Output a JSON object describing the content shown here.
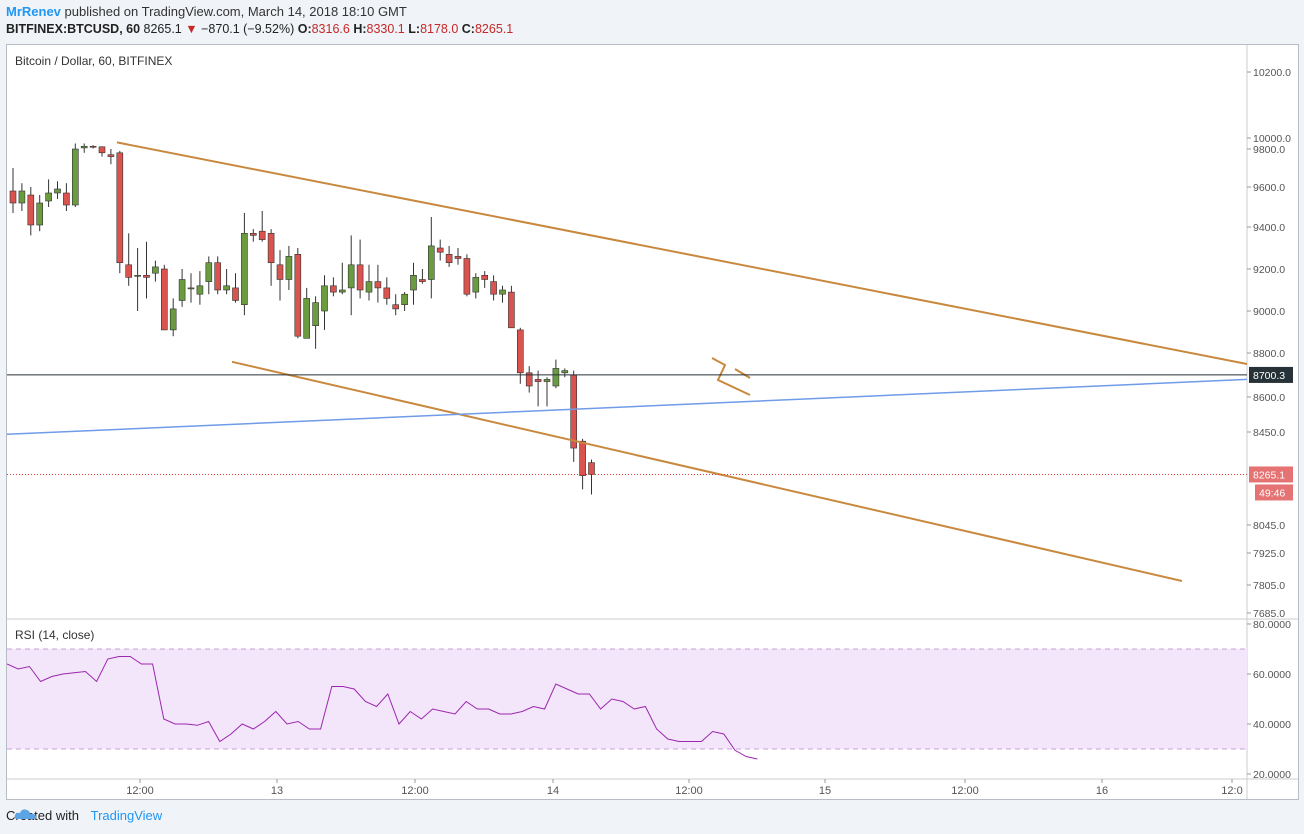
{
  "header": {
    "author": "MrRenev",
    "published": " published on TradingView.com, March 14, 2018 18:10 GMT",
    "symbol": "BITFINEX:BTCUSD, 60",
    "last": "8265.1",
    "change": "−870.1 (−9.52%)",
    "o_label": "O:",
    "o_val": "8316.6",
    "h_label": "H:",
    "h_val": "8330.1",
    "l_label": "L:",
    "l_val": "8178.0",
    "c_label": "C:",
    "c_val": "8265.1"
  },
  "footer": {
    "created": "Created with",
    "brand": "TradingView"
  },
  "chart_data": [
    {
      "type": "candlestick",
      "title": "Bitcoin / Dollar, 60, BITFINEX",
      "y_ticks": [
        "10200.0",
        "10000.0",
        "9800.0",
        "9600.0",
        "9400.0",
        "9200.0",
        "9000.0",
        "8800.0",
        "8600.0",
        "8450.0",
        "8045.0",
        "7925.0",
        "7805.0",
        "7685.0"
      ],
      "x_ticks": [
        "12:00",
        "13",
        "12:00",
        "14",
        "12:00",
        "15",
        "12:00",
        "16",
        "12:0"
      ],
      "price_labels": {
        "hline": "8700.3",
        "last": "8265.1",
        "countdown": "49:46"
      },
      "colors": {
        "up": "#6a9c3f",
        "down": "#d9534f",
        "channel": "#c8893f",
        "trend": "#6f9be8",
        "hline": "#263238",
        "last_line": "#e53935"
      },
      "candles_ohlc": [
        [
          9580,
          9700,
          9470,
          9520
        ],
        [
          9520,
          9620,
          9480,
          9580
        ],
        [
          9560,
          9600,
          9360,
          9410
        ],
        [
          9410,
          9560,
          9380,
          9520
        ],
        [
          9530,
          9640,
          9500,
          9570
        ],
        [
          9570,
          9630,
          9540,
          9590
        ],
        [
          9570,
          9620,
          9480,
          9510
        ],
        [
          9510,
          9900,
          9500,
          9800
        ],
        [
          9820,
          9900,
          9780,
          9850
        ],
        [
          9850,
          9870,
          9810,
          9840
        ],
        [
          9840,
          9850,
          9760,
          9780
        ],
        [
          9770,
          9800,
          9720,
          9760
        ],
        [
          9780,
          9790,
          9180,
          9230
        ],
        [
          9220,
          9370,
          9120,
          9160
        ],
        [
          9170,
          9300,
          9000,
          9170
        ],
        [
          9170,
          9330,
          9060,
          9160
        ],
        [
          9180,
          9240,
          9140,
          9210
        ],
        [
          9200,
          9220,
          8920,
          8910
        ],
        [
          8910,
          9060,
          8880,
          9010
        ],
        [
          9050,
          9200,
          9020,
          9150
        ],
        [
          9110,
          9180,
          9040,
          9110
        ],
        [
          9080,
          9190,
          9030,
          9120
        ],
        [
          9140,
          9260,
          9080,
          9230
        ],
        [
          9230,
          9260,
          9080,
          9100
        ],
        [
          9100,
          9200,
          9080,
          9120
        ],
        [
          9110,
          9180,
          9040,
          9050
        ],
        [
          9030,
          9470,
          8980,
          9370
        ],
        [
          9370,
          9390,
          9330,
          9360
        ],
        [
          9380,
          9480,
          9330,
          9340
        ],
        [
          9370,
          9390,
          9120,
          9230
        ],
        [
          9220,
          9290,
          9050,
          9150
        ],
        [
          9150,
          9310,
          9100,
          9260
        ],
        [
          9270,
          9300,
          8870,
          8880
        ],
        [
          8870,
          9110,
          8870,
          9060
        ],
        [
          8930,
          9070,
          8820,
          9040
        ],
        [
          9000,
          9170,
          8910,
          9120
        ],
        [
          9120,
          9160,
          9070,
          9090
        ],
        [
          9090,
          9230,
          9080,
          9100
        ],
        [
          9110,
          9360,
          8980,
          9220
        ],
        [
          9220,
          9340,
          9060,
          9100
        ],
        [
          9090,
          9220,
          9050,
          9140
        ],
        [
          9140,
          9220,
          9040,
          9110
        ],
        [
          9110,
          9160,
          9030,
          9060
        ],
        [
          9030,
          9080,
          8980,
          9010
        ],
        [
          9030,
          9090,
          9000,
          9080
        ],
        [
          9100,
          9230,
          9030,
          9170
        ],
        [
          9150,
          9200,
          9130,
          9140
        ],
        [
          9150,
          9450,
          9060,
          9310
        ],
        [
          9300,
          9340,
          9240,
          9280
        ],
        [
          9270,
          9310,
          9210,
          9230
        ],
        [
          9260,
          9300,
          9220,
          9250
        ],
        [
          9250,
          9270,
          9070,
          9080
        ],
        [
          9090,
          9180,
          9060,
          9160
        ],
        [
          9170,
          9190,
          9110,
          9150
        ],
        [
          9140,
          9170,
          9050,
          9080
        ],
        [
          9080,
          9120,
          9040,
          9100
        ],
        [
          9090,
          9120,
          8920,
          8920
        ],
        [
          8910,
          8920,
          8660,
          8710
        ],
        [
          8710,
          8740,
          8620,
          8650
        ],
        [
          8680,
          8720,
          8560,
          8670
        ],
        [
          8670,
          8690,
          8560,
          8680
        ],
        [
          8650,
          8770,
          8640,
          8730
        ],
        [
          8710,
          8730,
          8690,
          8720
        ],
        [
          8700,
          8720,
          8320,
          8380
        ],
        [
          8410,
          8420,
          8200,
          8260
        ],
        [
          8316.6,
          8330.1,
          8178,
          8265.1
        ]
      ],
      "channel_upper": [
        [
          9920,
          10000
        ],
        [
          8750,
          8760
        ]
      ],
      "channel_lower": [
        [
          8760,
          8750
        ],
        [
          7820,
          7800
        ]
      ],
      "trendline": [
        [
          8440,
          8400
        ],
        [
          8680,
          8690
        ]
      ],
      "horizontal_line": 8700.3
    },
    {
      "type": "line",
      "title": "RSI (14, close)",
      "y_ticks": [
        "80.0000",
        "60.0000",
        "40.0000",
        "20.0000"
      ],
      "band": [
        30,
        70
      ],
      "values": [
        64,
        62,
        63,
        57,
        59,
        60,
        60.5,
        61,
        57,
        66,
        67,
        67,
        64,
        64,
        42,
        40,
        40,
        39.5,
        41,
        33,
        36,
        40,
        38,
        41,
        45,
        40,
        41,
        38,
        38,
        55,
        55,
        54,
        49,
        47,
        52,
        40,
        45,
        42,
        46,
        45,
        44,
        49,
        46,
        46,
        44,
        44,
        45,
        47,
        46,
        56,
        54,
        52,
        52,
        46,
        50,
        49,
        46,
        47,
        38,
        34,
        33,
        33,
        33,
        37,
        36,
        29.5,
        27,
        26
      ]
    }
  ]
}
